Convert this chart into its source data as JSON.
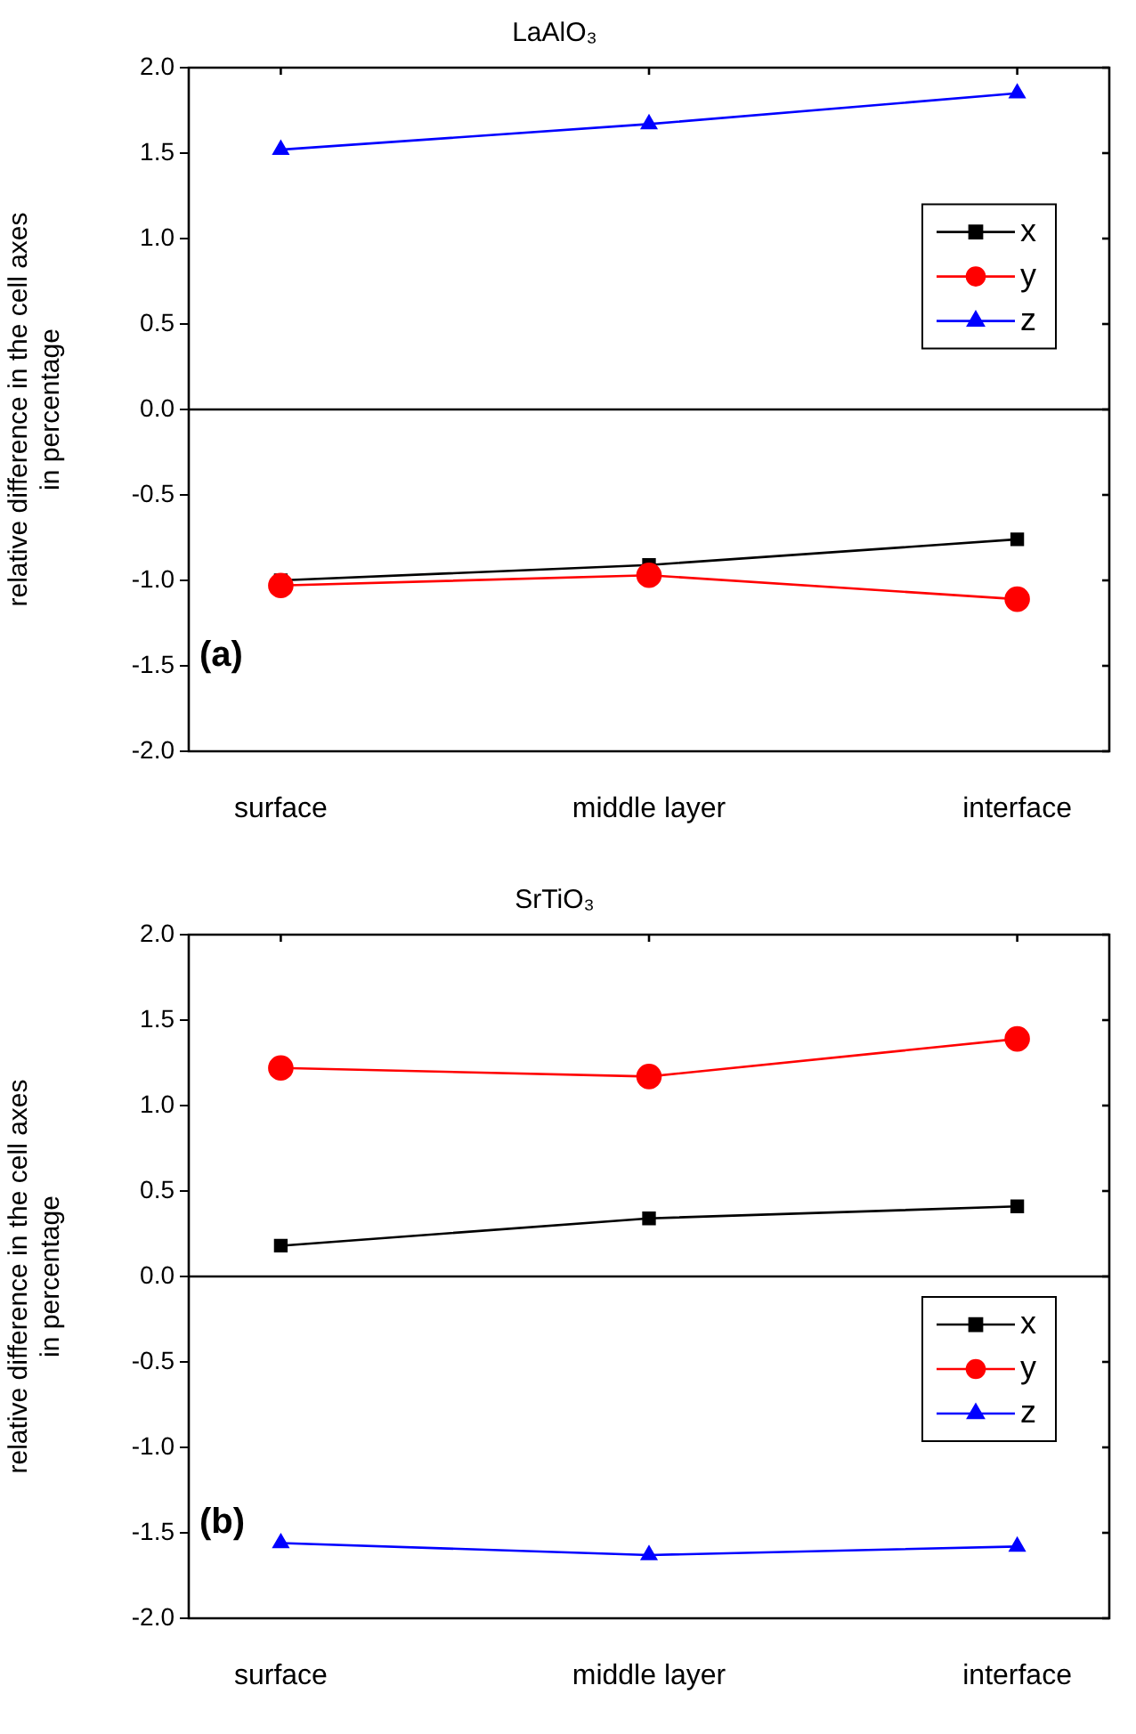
{
  "chart_data": [
    {
      "type": "line",
      "title": "LaAlO₃",
      "ylabel": "relative difference in the cell axes\nin percentage",
      "categories": [
        "surface",
        "middle layer",
        "interface"
      ],
      "ylim": [
        -2,
        2
      ],
      "yticks": [
        {
          "value": -2,
          "label": "-2.0"
        },
        {
          "value": -1.5,
          "label": "-1.5"
        },
        {
          "value": -1,
          "label": "-1.0"
        },
        {
          "value": -0.5,
          "label": "-0.5"
        },
        {
          "value": 0,
          "label": "0.0"
        },
        {
          "value": 0.5,
          "label": "0.5"
        },
        {
          "value": 1,
          "label": "1.0"
        },
        {
          "value": 1.5,
          "label": "1.5"
        },
        {
          "value": 2,
          "label": "2.0"
        }
      ],
      "grid": false,
      "legend": "top right",
      "line_style": "solid",
      "ref_lines": [
        {
          "axis": "y",
          "value": 0,
          "color": "#000000"
        }
      ],
      "annotations": [
        "(a)"
      ],
      "series": [
        {
          "name": "x",
          "color": "#000000",
          "marker": "square",
          "values": [
            -1.0,
            -0.91,
            -0.76
          ]
        },
        {
          "name": "y",
          "color": "#ff0000",
          "marker": "circle",
          "values": [
            -1.03,
            -0.97,
            -1.11
          ]
        },
        {
          "name": "z",
          "color": "#0000ff",
          "marker": "triangle",
          "values": [
            1.52,
            1.67,
            1.85
          ]
        }
      ]
    },
    {
      "type": "line",
      "title": "SrTiO₃",
      "ylabel": "relative difference in the cell axes\nin percentage",
      "categories": [
        "surface",
        "middle layer",
        "interface"
      ],
      "ylim": [
        -2,
        2
      ],
      "yticks": [
        {
          "value": -2,
          "label": "-2.0"
        },
        {
          "value": -1.5,
          "label": "-1.5"
        },
        {
          "value": -1,
          "label": "-1.0"
        },
        {
          "value": -0.5,
          "label": "-0.5"
        },
        {
          "value": 0,
          "label": "0.0"
        },
        {
          "value": 0.5,
          "label": "0.5"
        },
        {
          "value": 1,
          "label": "1.0"
        },
        {
          "value": 1.5,
          "label": "1.5"
        },
        {
          "value": 2,
          "label": "2.0"
        }
      ],
      "grid": false,
      "legend": "right",
      "line_style": "solid",
      "ref_lines": [
        {
          "axis": "y",
          "value": 0,
          "color": "#000000"
        }
      ],
      "annotations": [
        "(b)"
      ],
      "series": [
        {
          "name": "x",
          "color": "#000000",
          "marker": "square",
          "values": [
            0.18,
            0.34,
            0.41
          ]
        },
        {
          "name": "y",
          "color": "#ff0000",
          "marker": "circle",
          "values": [
            1.22,
            1.17,
            1.39
          ]
        },
        {
          "name": "z",
          "color": "#0000ff",
          "marker": "triangle",
          "values": [
            -1.56,
            -1.63,
            -1.58
          ]
        }
      ]
    }
  ]
}
